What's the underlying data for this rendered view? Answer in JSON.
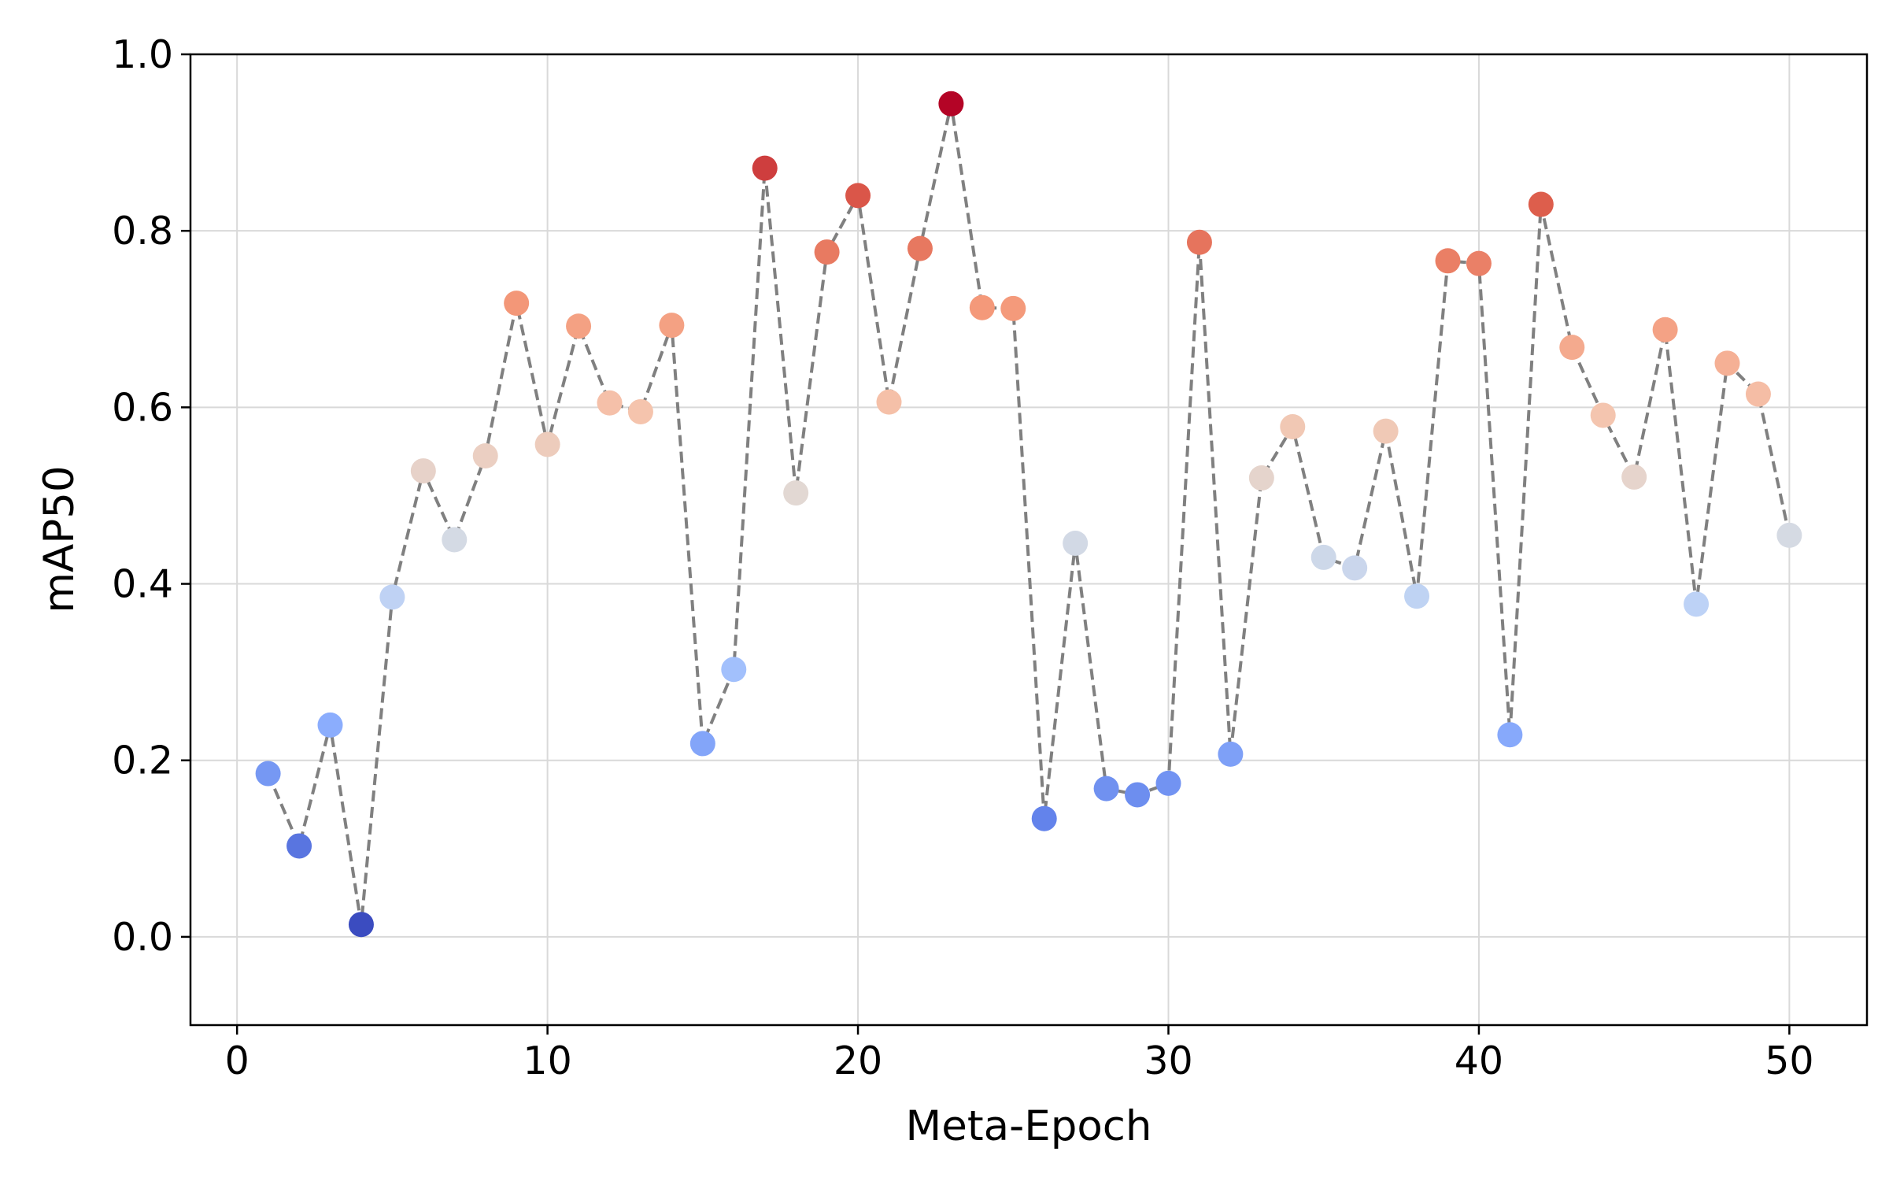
{
  "chart_data": {
    "type": "scatter",
    "title": "",
    "xlabel": "Meta-Epoch",
    "ylabel": "mAP50",
    "xlim": [
      -1.5,
      52.5
    ],
    "ylim": [
      -0.1,
      1.0
    ],
    "x_ticks": [
      0,
      10,
      20,
      30,
      40,
      50
    ],
    "y_ticks": [
      0.0,
      0.2,
      0.4,
      0.6,
      0.8,
      1.0
    ],
    "x_tick_labels": [
      "0",
      "10",
      "20",
      "30",
      "40",
      "50"
    ],
    "y_tick_labels": [
      "0.0",
      "0.2",
      "0.4",
      "0.6",
      "0.8",
      "1.0"
    ],
    "grid": true,
    "legend": "none",
    "colormap": "coolwarm",
    "line_style": "dashed",
    "line_color": "#808080",
    "grid_color": "#d9d9d9",
    "series": [
      {
        "x": [
          1,
          2,
          3,
          4,
          5,
          6,
          7,
          8,
          9,
          10,
          11,
          12,
          13,
          14,
          15,
          16,
          17,
          18,
          19,
          20,
          21,
          22,
          23,
          24,
          25,
          26,
          27,
          28,
          29,
          30,
          31,
          32,
          33,
          34,
          35,
          36,
          37,
          38,
          39,
          40,
          41,
          42,
          43,
          44,
          45,
          46,
          47,
          48,
          49,
          50
        ],
        "y": [
          0.185,
          0.103,
          0.24,
          0.014,
          0.385,
          0.528,
          0.45,
          0.545,
          0.718,
          0.558,
          0.692,
          0.605,
          0.595,
          0.693,
          0.219,
          0.303,
          0.871,
          0.503,
          0.776,
          0.84,
          0.606,
          0.78,
          0.944,
          0.713,
          0.712,
          0.134,
          0.446,
          0.168,
          0.161,
          0.174,
          0.787,
          0.207,
          0.52,
          0.578,
          0.43,
          0.418,
          0.573,
          0.386,
          0.766,
          0.763,
          0.229,
          0.83,
          0.668,
          0.591,
          0.521,
          0.688,
          0.377,
          0.65,
          0.615,
          0.455
        ]
      }
    ]
  }
}
